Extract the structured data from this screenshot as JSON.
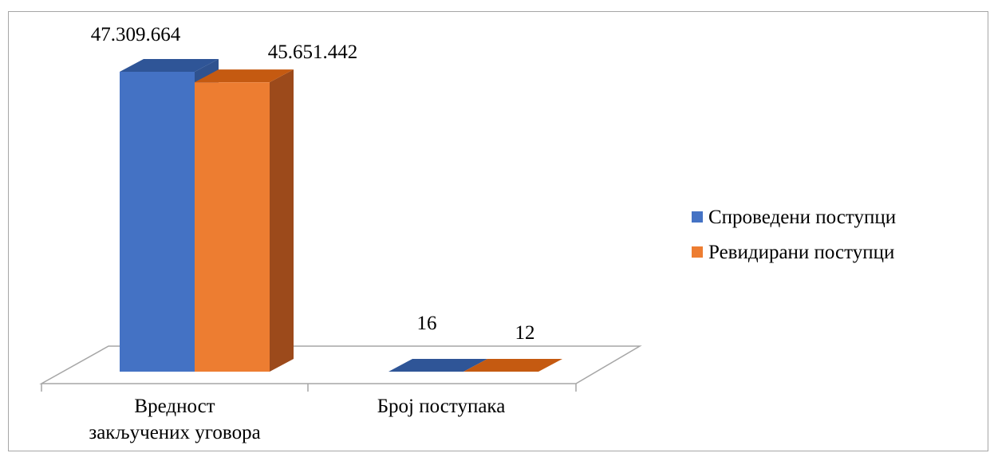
{
  "chart_data": {
    "type": "bar",
    "style": "3d-clustered-column",
    "categories": [
      [
        "Вредност",
        "закључених уговора"
      ],
      [
        "Број поступака"
      ]
    ],
    "series": [
      {
        "name": "Спроведени поступци",
        "values": [
          47309664,
          16
        ],
        "labels": [
          "47.309.664",
          "16"
        ],
        "color": "#4472c4",
        "top_color": "#2f5597",
        "side_color": "#2f528f"
      },
      {
        "name": "Ревидирани поступци",
        "values": [
          45651442,
          12
        ],
        "labels": [
          "45.651.442",
          "12"
        ],
        "color": "#ed7d31",
        "top_color": "#c55a11",
        "side_color": "#9c4a1b"
      }
    ],
    "ylim": [
      0,
      47309664
    ],
    "legend_position": "right",
    "grid": false,
    "title": "",
    "xlabel": "",
    "ylabel": ""
  }
}
